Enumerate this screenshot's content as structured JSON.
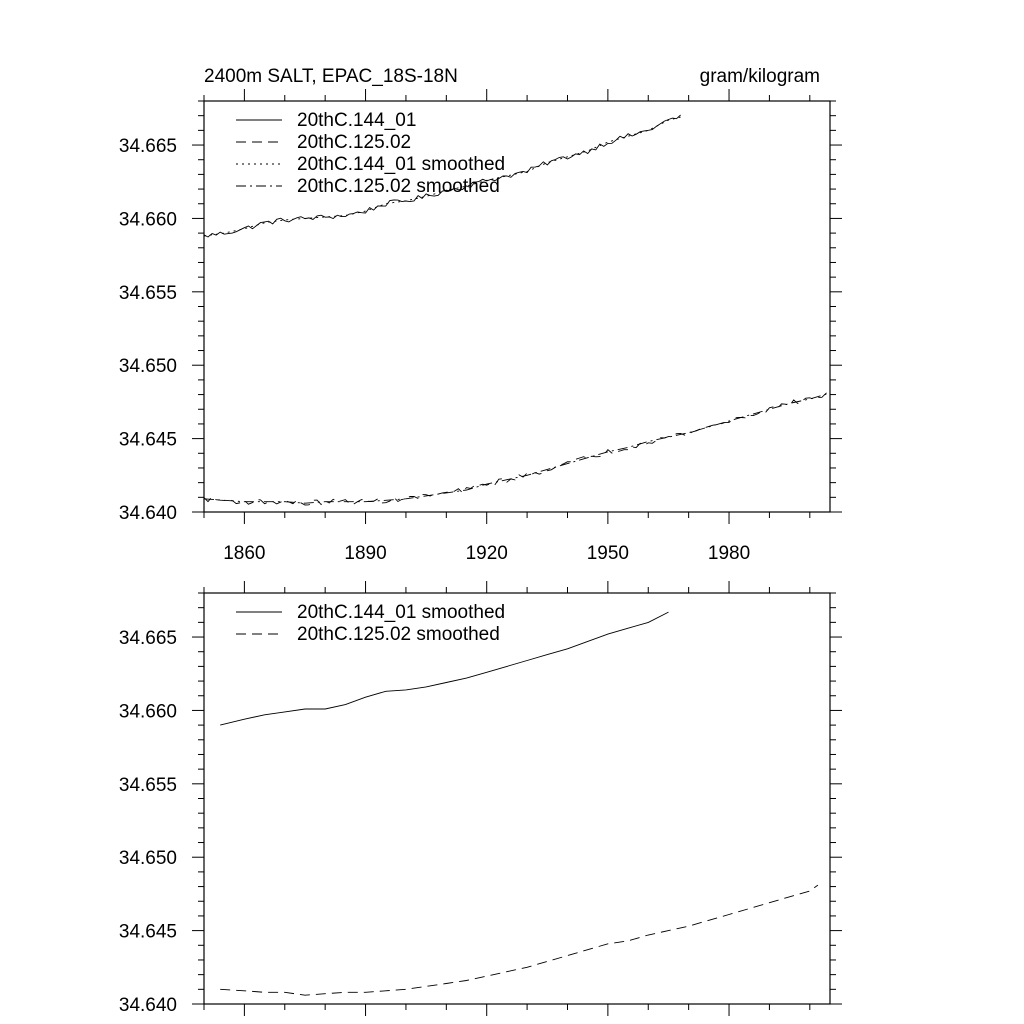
{
  "figure": {
    "title_left": "2400m SALT, EPAC_18S-18N",
    "title_right": "gram/kilogram"
  },
  "chart_data": [
    {
      "type": "line",
      "panel": "top",
      "title": "2400m SALT, EPAC_18S-18N",
      "units": "gram/kilogram",
      "xlabel": "",
      "ylabel": "",
      "xlim": [
        1850,
        2005
      ],
      "ylim": [
        34.64,
        34.668
      ],
      "x_ticks": [
        1860,
        1890,
        1920,
        1950,
        1980
      ],
      "x_tick_labels": [
        "1860",
        "1890",
        "1920",
        "1950",
        "1980"
      ],
      "y_ticks": [
        34.64,
        34.645,
        34.65,
        34.655,
        34.66,
        34.665
      ],
      "y_tick_labels": [
        "34.640",
        "34.645",
        "34.650",
        "34.655",
        "34.660",
        "34.665"
      ],
      "legend_position": "top-left",
      "grid": false,
      "series": [
        {
          "name": "20thC.144_01",
          "style": "solid",
          "x": [
            1850,
            1855,
            1860,
            1865,
            1870,
            1875,
            1880,
            1885,
            1890,
            1895,
            1900,
            1905,
            1910,
            1915,
            1920,
            1925,
            1930,
            1935,
            1940,
            1945,
            1950,
            1955,
            1960,
            1965,
            1968
          ],
          "values": [
            34.6588,
            34.659,
            34.6593,
            34.6597,
            34.6599,
            34.66,
            34.6601,
            34.6602,
            34.6605,
            34.661,
            34.6612,
            34.6615,
            34.6619,
            34.6622,
            34.6626,
            34.6629,
            34.6632,
            34.6638,
            34.6642,
            34.6646,
            34.6652,
            34.6656,
            34.666,
            34.6667,
            34.6669
          ],
          "noise": 0.0003
        },
        {
          "name": "20thC.125.02",
          "style": "dashed",
          "x": [
            1850,
            1855,
            1860,
            1865,
            1870,
            1875,
            1880,
            1885,
            1890,
            1895,
            1900,
            1905,
            1910,
            1915,
            1920,
            1925,
            1930,
            1935,
            1940,
            1945,
            1950,
            1955,
            1960,
            1965,
            1970,
            1975,
            1980,
            1985,
            1990,
            1995,
            2000,
            2005
          ],
          "values": [
            34.6409,
            34.6408,
            34.6407,
            34.6407,
            34.6407,
            34.6406,
            34.6407,
            34.6407,
            34.6407,
            34.6408,
            34.6409,
            34.6411,
            34.6413,
            34.6415,
            34.6419,
            34.6422,
            34.6425,
            34.6429,
            34.6433,
            34.6437,
            34.6441,
            34.6444,
            34.6448,
            34.6451,
            34.6454,
            34.6458,
            34.6462,
            34.6466,
            34.647,
            34.6474,
            34.6477,
            34.6481
          ],
          "noise": 0.0003
        },
        {
          "name": "20thC.144_01 smoothed",
          "style": "dotted",
          "x": [
            1850,
            1855,
            1860,
            1865,
            1870,
            1875,
            1880,
            1885,
            1890,
            1895,
            1900,
            1905,
            1910,
            1915,
            1920,
            1925,
            1930,
            1935,
            1940,
            1945,
            1950,
            1955,
            1960,
            1965,
            1968
          ],
          "values": [
            34.6588,
            34.659,
            34.6593,
            34.6597,
            34.6599,
            34.66,
            34.6601,
            34.6602,
            34.6605,
            34.661,
            34.6612,
            34.6615,
            34.6619,
            34.6622,
            34.6626,
            34.6629,
            34.6632,
            34.6638,
            34.6642,
            34.6646,
            34.6652,
            34.6656,
            34.666,
            34.6667,
            34.6669
          ]
        },
        {
          "name": "20thC.125.02 smoothed",
          "style": "dashdot",
          "x": [
            1850,
            1855,
            1860,
            1865,
            1870,
            1875,
            1880,
            1885,
            1890,
            1895,
            1900,
            1905,
            1910,
            1915,
            1920,
            1925,
            1930,
            1935,
            1940,
            1945,
            1950,
            1955,
            1960,
            1965,
            1970,
            1975,
            1980,
            1985,
            1990,
            1995,
            2000,
            2005
          ],
          "values": [
            34.6409,
            34.6408,
            34.6407,
            34.6407,
            34.6407,
            34.6406,
            34.6407,
            34.6407,
            34.6407,
            34.6408,
            34.6409,
            34.6411,
            34.6413,
            34.6415,
            34.6419,
            34.6422,
            34.6425,
            34.6429,
            34.6433,
            34.6437,
            34.6441,
            34.6444,
            34.6448,
            34.6451,
            34.6454,
            34.6458,
            34.6462,
            34.6466,
            34.647,
            34.6474,
            34.6477,
            34.6481
          ]
        }
      ]
    },
    {
      "type": "line",
      "panel": "bottom",
      "title": "",
      "xlabel": "",
      "ylabel": "",
      "xlim": [
        1850,
        2005
      ],
      "ylim": [
        34.64,
        34.668
      ],
      "x_ticks": [
        1860,
        1890,
        1920,
        1950,
        1980
      ],
      "x_tick_labels": [],
      "y_ticks": [
        34.64,
        34.645,
        34.65,
        34.655,
        34.66,
        34.665
      ],
      "y_tick_labels": [
        "34.640",
        "34.645",
        "34.650",
        "34.655",
        "34.660",
        "34.665"
      ],
      "legend_position": "top-left",
      "grid": false,
      "series": [
        {
          "name": "20thC.144_01 smoothed",
          "style": "solid",
          "x": [
            1854,
            1860,
            1865,
            1870,
            1875,
            1880,
            1885,
            1890,
            1895,
            1900,
            1905,
            1910,
            1915,
            1920,
            1925,
            1930,
            1935,
            1940,
            1945,
            1950,
            1955,
            1960,
            1965
          ],
          "values": [
            34.659,
            34.6594,
            34.6597,
            34.6599,
            34.6601,
            34.6601,
            34.6604,
            34.6609,
            34.6613,
            34.6614,
            34.6616,
            34.6619,
            34.6622,
            34.6626,
            34.663,
            34.6634,
            34.6638,
            34.6642,
            34.6647,
            34.6652,
            34.6656,
            34.666,
            34.6667
          ]
        },
        {
          "name": "20thC.125.02 smoothed",
          "style": "dashed",
          "x": [
            1854,
            1860,
            1865,
            1870,
            1875,
            1880,
            1885,
            1890,
            1895,
            1900,
            1905,
            1910,
            1915,
            1920,
            1925,
            1930,
            1935,
            1940,
            1945,
            1950,
            1955,
            1960,
            1965,
            1970,
            1975,
            1980,
            1985,
            1990,
            1995,
            2000,
            2002
          ],
          "values": [
            34.641,
            34.6409,
            34.6408,
            34.6408,
            34.6406,
            34.6407,
            34.6408,
            34.6408,
            34.6409,
            34.641,
            34.6412,
            34.6414,
            34.6416,
            34.6419,
            34.6422,
            34.6425,
            34.6429,
            34.6433,
            34.6437,
            34.6441,
            34.6443,
            34.6447,
            34.645,
            34.6453,
            34.6457,
            34.6461,
            34.6465,
            34.6469,
            34.6473,
            34.6477,
            34.6481
          ]
        }
      ]
    }
  ]
}
